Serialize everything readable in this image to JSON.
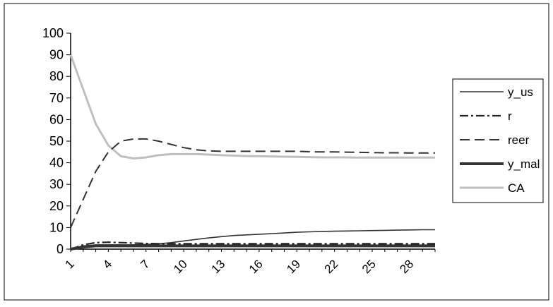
{
  "chart_data": {
    "type": "line",
    "x": [
      1,
      2,
      3,
      4,
      5,
      6,
      7,
      8,
      9,
      10,
      11,
      12,
      13,
      14,
      15,
      16,
      17,
      18,
      19,
      20,
      21,
      22,
      23,
      24,
      25,
      26,
      27,
      28,
      29,
      30
    ],
    "x_tick_labels": [
      "1",
      "4",
      "7",
      "10",
      "13",
      "16",
      "19",
      "22",
      "25",
      "28"
    ],
    "ylim": [
      0,
      100
    ],
    "y_tick_labels": [
      "0",
      "10",
      "20",
      "30",
      "40",
      "50",
      "60",
      "70",
      "80",
      "90",
      "100"
    ],
    "grid": false,
    "legend_position": "right",
    "series": [
      {
        "name": "y_us",
        "style": "solid-thin",
        "color": "#333333",
        "values": [
          0,
          1.5,
          2,
          2,
          2,
          2,
          2.2,
          2.5,
          3,
          3.8,
          4.5,
          5.2,
          5.8,
          6.3,
          6.6,
          6.9,
          7.2,
          7.5,
          7.8,
          8,
          8.2,
          8.3,
          8.4,
          8.5,
          8.6,
          8.7,
          8.8,
          8.9,
          9,
          9
        ]
      },
      {
        "name": "r",
        "style": "dash-dot",
        "color": "#222222",
        "values": [
          0,
          2,
          3,
          3.2,
          3,
          2.8,
          2.6,
          2.5,
          2.5,
          2.5,
          2.5,
          2.5,
          2.5,
          2.5,
          2.5,
          2.5,
          2.5,
          2.5,
          2.5,
          2.5,
          2.5,
          2.5,
          2.5,
          2.5,
          2.5,
          2.5,
          2.5,
          2.5,
          2.5,
          2.5
        ]
      },
      {
        "name": "reer",
        "style": "dashed",
        "color": "#333333",
        "values": [
          10,
          23,
          36,
          45,
          50,
          51,
          51,
          50,
          48.5,
          47,
          46,
          45.5,
          45.3,
          45.3,
          45.3,
          45.3,
          45.3,
          45.3,
          45.3,
          45.1,
          45,
          45,
          44.9,
          44.8,
          44.7,
          44.6,
          44.6,
          44.5,
          44.5,
          44.5
        ]
      },
      {
        "name": "y_mal",
        "style": "solid-thick",
        "color": "#333333",
        "values": [
          0,
          1,
          1.5,
          1.5,
          1.5,
          1.5,
          1.5,
          1.5,
          1.5,
          1.5,
          1.5,
          1.5,
          1.5,
          1.5,
          1.5,
          1.5,
          1.5,
          1.5,
          1.5,
          1.5,
          1.5,
          1.5,
          1.5,
          1.5,
          1.5,
          1.5,
          1.5,
          1.5,
          1.5,
          1.5
        ]
      },
      {
        "name": "CA",
        "style": "solid-light",
        "color": "#bfbfbf",
        "values": [
          90,
          74,
          58,
          48,
          43,
          42,
          42.5,
          43.5,
          44,
          44,
          44,
          43.8,
          43.5,
          43.3,
          43.1,
          43,
          42.9,
          42.8,
          42.7,
          42.6,
          42.5,
          42.5,
          42.5,
          42.4,
          42.4,
          42.4,
          42.4,
          42.4,
          42.4,
          42.4
        ]
      }
    ]
  }
}
